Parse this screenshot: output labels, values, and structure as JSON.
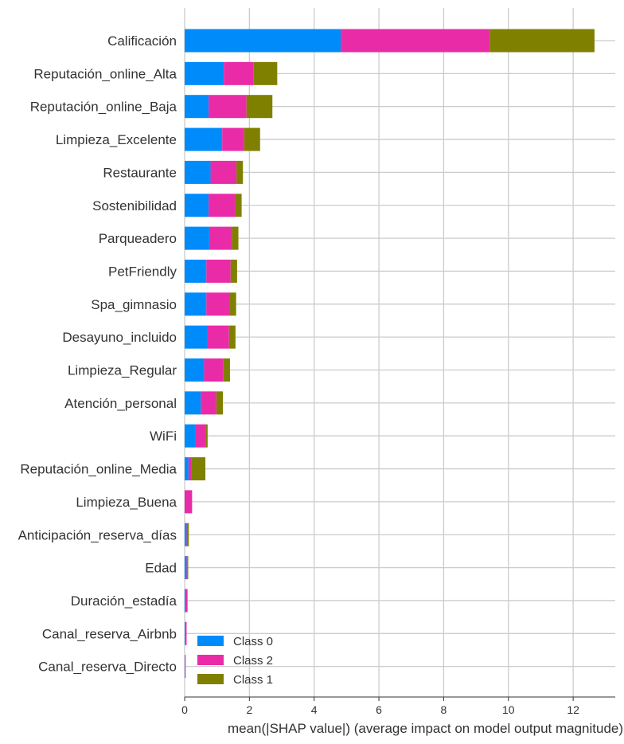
{
  "chart_data": {
    "type": "bar",
    "orientation": "horizontal",
    "stacked": true,
    "xlabel": "mean(|SHAP value|) (average impact on model output magnitude)",
    "xlim": [
      0,
      13.3
    ],
    "xticks": [
      0,
      2,
      4,
      6,
      8,
      10,
      12
    ],
    "grid": true,
    "legend_position": "bottom-left",
    "categories": [
      "Calificación",
      "Reputación_online_Alta",
      "Reputación_online_Baja",
      "Limpieza_Excelente",
      "Restaurante",
      "Sostenibilidad",
      "Parqueadero",
      "PetFriendly",
      "Spa_gimnasio",
      "Desayuno_incluido",
      "Limpieza_Regular",
      "Atención_personal",
      "WiFi",
      "Reputación_online_Media",
      "Limpieza_Buena",
      "Anticipación_reserva_días",
      "Edad",
      "Duración_estadía",
      "Canal_reserva_Airbnb",
      "Canal_reserva_Directo"
    ],
    "series": [
      {
        "name": "Class 0",
        "color": "#008bfb",
        "values": [
          4.82,
          1.21,
          0.74,
          1.16,
          0.8,
          0.74,
          0.76,
          0.67,
          0.67,
          0.7,
          0.6,
          0.5,
          0.32,
          0.12,
          0.0,
          0.06,
          0.06,
          0.04,
          0.02,
          0.01
        ]
      },
      {
        "name": "Class 2",
        "color": "#ea2ba8",
        "values": [
          4.6,
          0.91,
          1.17,
          0.68,
          0.8,
          0.82,
          0.7,
          0.75,
          0.72,
          0.67,
          0.6,
          0.48,
          0.33,
          0.1,
          0.23,
          0.04,
          0.03,
          0.04,
          0.04,
          0.02
        ]
      },
      {
        "name": "Class 1",
        "color": "#808000",
        "values": [
          3.24,
          0.74,
          0.8,
          0.49,
          0.2,
          0.2,
          0.2,
          0.2,
          0.2,
          0.2,
          0.2,
          0.2,
          0.06,
          0.42,
          0.0,
          0.03,
          0.02,
          0.01,
          0.0,
          0.0
        ]
      }
    ],
    "legend_order": [
      "Class 0",
      "Class 2",
      "Class 1"
    ]
  }
}
